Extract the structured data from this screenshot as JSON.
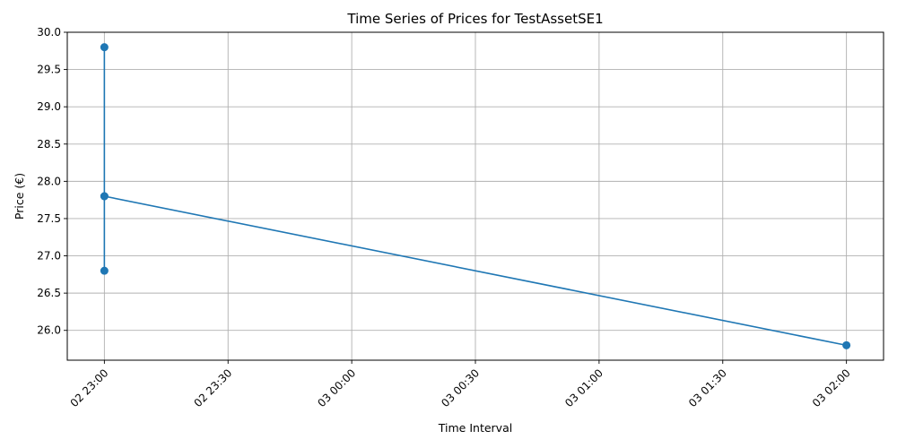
{
  "chart_data": {
    "type": "line",
    "title": "Time Series of Prices for TestAssetSE1",
    "xlabel": "Time Interval",
    "ylabel": "Price (€)",
    "x_tick_labels": [
      "02 23:00",
      "02 23:30",
      "03 00:00",
      "03 00:30",
      "03 01:00",
      "03 01:30",
      "03 02:00"
    ],
    "x_tick_minutes": [
      0,
      30,
      60,
      90,
      120,
      150,
      180
    ],
    "xlim_minutes": [
      -9,
      189
    ],
    "y_ticks": [
      26.0,
      26.5,
      27.0,
      27.5,
      28.0,
      28.5,
      29.0,
      29.5,
      30.0
    ],
    "y_tick_labels": [
      "26.0",
      "26.5",
      "27.0",
      "27.5",
      "28.0",
      "28.5",
      "29.0",
      "29.5",
      "30.0"
    ],
    "ylim": [
      25.6,
      30.0
    ],
    "grid": true,
    "series": [
      {
        "color": "#1f77b4",
        "marker": "circle",
        "points": [
          {
            "x": "02 23:00",
            "y": 27.8
          },
          {
            "x": "02 23:00",
            "y": 26.8
          },
          {
            "x": "02 23:00",
            "y": 29.8
          },
          {
            "x": "02 23:00",
            "y": 27.8
          },
          {
            "x": "03 02:00",
            "y": 25.8
          }
        ]
      }
    ]
  }
}
